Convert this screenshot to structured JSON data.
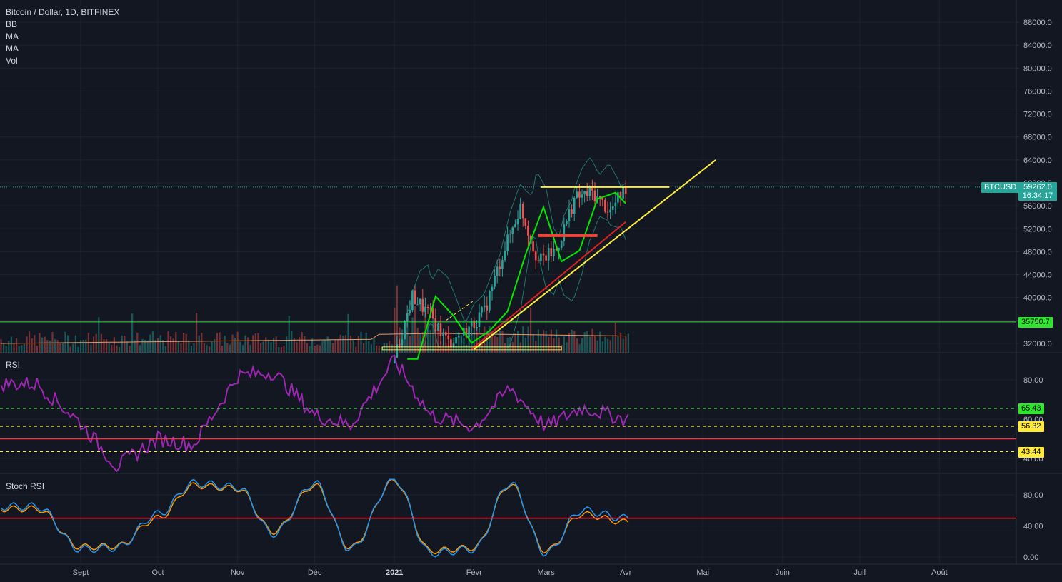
{
  "header": {
    "symbol_title": "Bitcoin / Dollar, 1D, BITFINEX",
    "indicators": [
      "BB",
      "MA",
      "MA",
      "Vol"
    ]
  },
  "price_pane": {
    "y_ticks": [
      "88000.0",
      "84000.0",
      "80000.0",
      "76000.0",
      "72000.0",
      "68000.0",
      "64000.0",
      "60000.0",
      "56000.0",
      "52000.0",
      "48000.0",
      "44000.0",
      "40000.0",
      "36000.0",
      "32000.0"
    ],
    "y_tick_values": [
      88000,
      84000,
      80000,
      76000,
      72000,
      68000,
      64000,
      60000,
      56000,
      52000,
      48000,
      44000,
      40000,
      36000,
      32000
    ],
    "symbol_tag": "BTCUSD",
    "last_price": "59262.0",
    "last_price_value": 59262,
    "countdown": "16:34:17",
    "support_level": "35750.7",
    "support_value": 35750.7
  },
  "rsi_pane": {
    "label": "RSI",
    "y_ticks": [
      "80.00",
      "60.00",
      "40.00"
    ],
    "y_tick_values": [
      80,
      60,
      40
    ],
    "levels": [
      {
        "label": "65.43",
        "value": 65.43
      },
      {
        "label": "56.32",
        "value": 56.32
      },
      {
        "label": "43.44",
        "value": 43.44
      }
    ],
    "red_level": 50
  },
  "stoch_pane": {
    "label": "Stoch RSI",
    "y_ticks": [
      "80.00",
      "40.00",
      "0.00"
    ],
    "y_tick_values": [
      80,
      40,
      0
    ],
    "red_level": 50
  },
  "time_axis": {
    "labels": [
      "Sept",
      "Oct",
      "Nov",
      "Déc",
      "2021",
      "Févr",
      "Mars",
      "Avr",
      "Mai",
      "Juin",
      "Juil",
      "Août"
    ]
  },
  "colors": {
    "background": "#131722",
    "bull": "#26a69a",
    "bear": "#ef5350",
    "rsi": "#9c27b0",
    "stoch_k": "#2196f3",
    "stoch_d": "#ff9800",
    "ma_fast": "#00e600",
    "ma_slow": "#e02020",
    "trendline": "#ffeb3b",
    "support": "#2ee62e",
    "price_tag": "#26a69a"
  },
  "chart_data": [
    {
      "type": "line",
      "title": "Bitcoin / Dollar, 1D, BITFINEX",
      "ylim": [
        31000,
        91000
      ],
      "x": [
        "2021-01-01",
        "2021-01-08",
        "2021-01-15",
        "2021-01-22",
        "2021-01-29",
        "2021-02-05",
        "2021-02-12",
        "2021-02-19",
        "2021-02-26",
        "2021-03-05",
        "2021-03-12",
        "2021-03-19",
        "2021-03-26",
        "2021-04-01"
      ],
      "series": [
        {
          "values": [
            29300,
            40200,
            36800,
            32100,
            34200,
            37600,
            47500,
            55800,
            46300,
            48200,
            57200,
            58300,
            55000,
            59262
          ]
        }
      ],
      "support_level": 35750.7,
      "resistance_level": 59262,
      "grid": true
    },
    {
      "type": "line",
      "title": "RSI",
      "ylim": [
        34,
        110
      ],
      "x": [
        "2020-08-15",
        "2020-09-01",
        "2020-09-15",
        "2020-10-01",
        "2020-10-15",
        "2020-11-01",
        "2020-11-15",
        "2020-12-01",
        "2020-12-15",
        "2021-01-01",
        "2021-01-15",
        "2021-02-01",
        "2021-02-15",
        "2021-03-01",
        "2021-03-15",
        "2021-04-01"
      ],
      "series": [
        {
          "values": [
            78,
            58,
            36,
            50,
            47,
            82,
            84,
            62,
            57,
            90,
            62,
            56,
            76,
            56,
            66,
            60
          ]
        }
      ],
      "levels": [
        65.43,
        56.32,
        43.44,
        50
      ]
    },
    {
      "type": "line",
      "title": "Stoch RSI",
      "ylim": [
        -5,
        105
      ],
      "x": [
        "2020-08-15",
        "2020-09-01",
        "2020-09-15",
        "2020-10-01",
        "2020-10-15",
        "2020-11-01",
        "2020-11-15",
        "2020-12-01",
        "2020-12-15",
        "2021-01-01",
        "2021-01-15",
        "2021-02-01",
        "2021-02-15",
        "2021-03-01",
        "2021-03-15",
        "2021-04-01"
      ],
      "series": [
        {
          "values": [
            65,
            10,
            12,
            55,
            95,
            90,
            30,
            95,
            10,
            100,
            5,
            10,
            95,
            5,
            60,
            50
          ]
        },
        {
          "values": [
            62,
            13,
            14,
            50,
            92,
            88,
            33,
            92,
            12,
            98,
            8,
            12,
            93,
            8,
            55,
            45
          ]
        }
      ],
      "levels": [
        50
      ]
    }
  ]
}
